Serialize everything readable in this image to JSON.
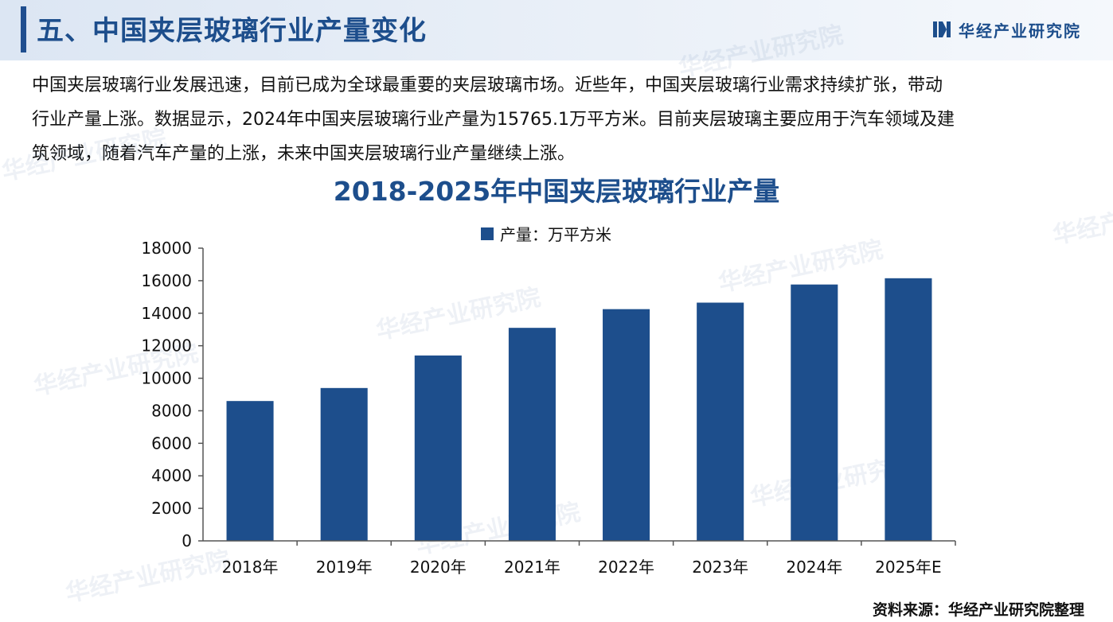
{
  "header": {
    "title": "五、中国夹层玻璃行业产量变化",
    "brand": "华经产业研究院",
    "accent_color": "#1d4e8c"
  },
  "intro": {
    "line1": "中国夹层玻璃行业发展迅速，目前已成为全球最重要的夹层玻璃市场。近些年，中国夹层玻璃行业需求持续扩张，带动",
    "line2": "行业产量上涨。数据显示，2024年中国夹层玻璃行业产量为15765.1万平方米。目前夹层玻璃主要应用于汽车领域及建",
    "line3": "筑领域，随着汽车产量的上涨，未来中国夹层玻璃行业产量继续上涨。"
  },
  "watermark": "华经产业研究院",
  "source": "资料来源：华经产业研究院整理",
  "chart_data": {
    "type": "bar",
    "title": "2018-2025年中国夹层玻璃行业产量",
    "categories": [
      "2018年",
      "2019年",
      "2020年",
      "2021年",
      "2022年",
      "2023年",
      "2024年",
      "2025年E"
    ],
    "series": [
      {
        "name": "产量：万平方米",
        "values": [
          8600,
          9400,
          11400,
          13100,
          14250,
          14650,
          15765.1,
          16150
        ],
        "color": "#1d4e8c"
      }
    ],
    "ylim": [
      0,
      18000
    ],
    "yticks": [
      0,
      2000,
      4000,
      6000,
      8000,
      10000,
      12000,
      14000,
      16000,
      18000
    ],
    "legend": "top-center",
    "grid": false
  }
}
